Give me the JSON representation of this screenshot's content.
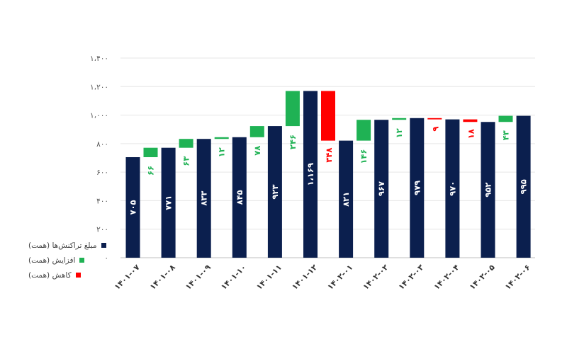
{
  "chart_data": {
    "type": "bar",
    "subtype": "waterfall",
    "title": "",
    "xlabel": "",
    "ylabel": "",
    "ylim": [
      0,
      1400
    ],
    "grid": true,
    "y_ticks": [
      0,
      200,
      400,
      600,
      800,
      1000,
      1200,
      1400
    ],
    "y_tick_labels": [
      "۰",
      "۲۰۰",
      "۴۰۰",
      "۶۰۰",
      "۸۰۰",
      "۱،۰۰۰",
      "۱،۲۰۰",
      "۱،۴۰۰"
    ],
    "categories": [
      "۱۴۰۱-۰۷",
      "۱۴۰۱-۰۸",
      "۱۴۰۱-۰۹",
      "۱۴۰۱-۱۰",
      "۱۴۰۱-۱۱",
      "۱۴۰۱-۱۲",
      "۱۴۰۲-۰۱",
      "۱۴۰۲-۰۲",
      "۱۴۰۲-۰۳",
      "۱۴۰۲-۰۴",
      "۱۴۰۲-۰۵",
      "۱۴۰۲-۰۶"
    ],
    "totals": [
      705,
      771,
      833,
      845,
      923,
      1169,
      821,
      967,
      979,
      970,
      952,
      995
    ],
    "total_labels": [
      "۷۰۵",
      "۷۷۱",
      "۸۳۳",
      "۸۴۵",
      "۹۲۳",
      "۱،۱۶۹",
      "۸۲۱",
      "۹۶۷",
      "۹۷۹",
      "۹۷۰",
      "۹۵۲",
      "۹۹۵"
    ],
    "changes": [
      66,
      63,
      12,
      78,
      246,
      -348,
      146,
      12,
      -9,
      -18,
      43
    ],
    "change_labels": [
      "۶۶",
      "۶۳",
      "۱۲",
      "۷۸",
      "۲۴۶",
      "۳۴۸",
      "۱۴۶",
      "۱۲",
      "۹",
      "۱۸",
      "۴۳"
    ],
    "series": [
      {
        "name": "مبلغ تراکنش‌ها (همت)",
        "color": "#0b1f4e"
      },
      {
        "name": "افزایش (همت)",
        "color": "#1fb254"
      },
      {
        "name": "کاهش (همت)",
        "color": "#ff0000"
      }
    ],
    "legend_position": "left"
  }
}
